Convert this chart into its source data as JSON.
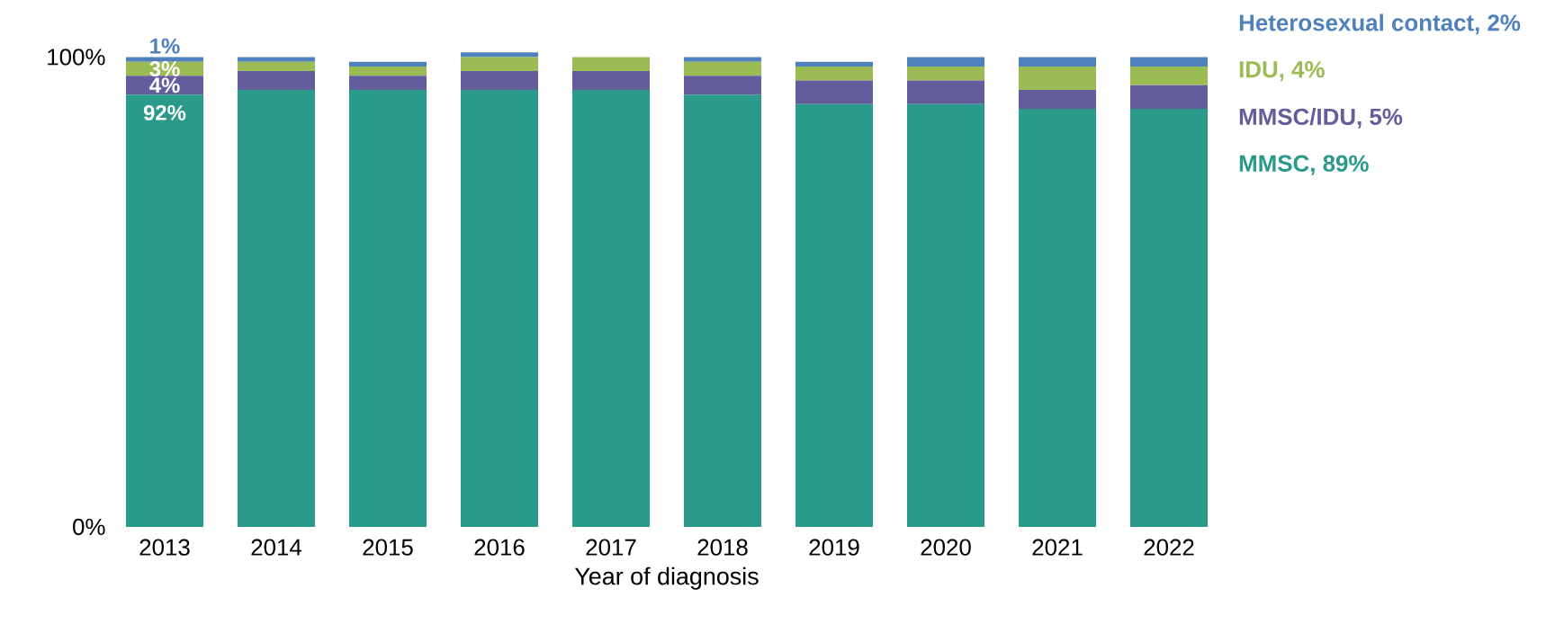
{
  "chart_data": {
    "type": "bar",
    "stacked": true,
    "xlabel": "Year of diagnosis",
    "categories": [
      "2013",
      "2014",
      "2015",
      "2016",
      "2017",
      "2018",
      "2019",
      "2020",
      "2021",
      "2022"
    ],
    "ylim": [
      0,
      102
    ],
    "yticks": [
      {
        "value": 0,
        "label": "0%"
      },
      {
        "value": 100,
        "label": "100%"
      }
    ],
    "series": [
      {
        "name": "MMSC, 89%",
        "color": "#2a9a8a",
        "values": [
          92,
          93,
          93,
          93,
          93,
          92,
          90,
          90,
          89,
          89
        ],
        "value_labels": [
          "92%",
          null,
          null,
          null,
          null,
          null,
          null,
          null,
          null,
          null
        ]
      },
      {
        "name": "MMSC/IDU, 5%",
        "color": "#635d9e",
        "values": [
          4,
          4,
          3,
          4,
          4,
          4,
          5,
          5,
          4,
          5
        ],
        "value_labels": [
          "4%",
          null,
          null,
          null,
          null,
          null,
          null,
          null,
          null,
          null
        ]
      },
      {
        "name": "IDU, 4%",
        "color": "#9bbb55",
        "values": [
          3,
          2,
          2,
          3,
          3,
          3,
          3,
          3,
          5,
          4
        ],
        "value_labels": [
          "3%",
          null,
          null,
          null,
          null,
          null,
          null,
          null,
          null,
          null
        ]
      },
      {
        "name": "Heterosexual contact, 2%",
        "color": "#4f81bd",
        "values": [
          1,
          1,
          1,
          1,
          0,
          1,
          1,
          2,
          2,
          2
        ],
        "value_labels": [
          "1%",
          null,
          null,
          null,
          null,
          null,
          null,
          null,
          null,
          null
        ]
      }
    ]
  }
}
